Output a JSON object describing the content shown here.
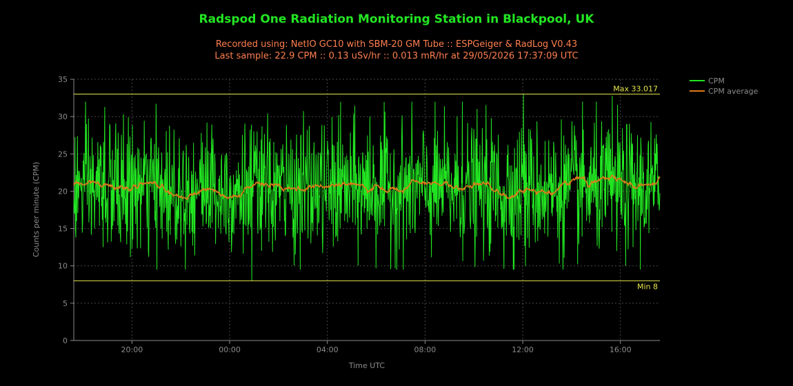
{
  "chart_data": {
    "type": "line",
    "title": "Radspod One Radiation Monitoring Station in Blackpool, UK",
    "subtitle_lines": [
      "Recorded using: NetIO GC10 with SBM-20 GM Tube :: ESPGeiger & RadLog V0.43",
      "Last sample: 22.9 CPM :: 0.13 uSv/hr :: 0.013 mR/hr at 29/05/2026 17:37:09 UTC"
    ],
    "xlabel": "Time UTC",
    "ylabel": "Counts per minute (CPM)",
    "x_range": [
      "2026-05-28 17:37",
      "2026-05-29 17:37"
    ],
    "x_ticks": [
      "20:00",
      "00:00",
      "04:00",
      "08:00",
      "12:00",
      "16:00"
    ],
    "ylim": [
      0,
      35
    ],
    "y_ticks": [
      "0",
      "5",
      "10",
      "15",
      "20",
      "25",
      "30",
      "35"
    ],
    "grid": true,
    "legend_position": "top-right",
    "series": [
      {
        "name": "CPM",
        "color": "#22e622",
        "sampling": "1-minute samples, about 1440 points over 24 h, mean ≈ 20.3 CPM, std ≈ 4.3"
      },
      {
        "name": "CPM average",
        "color": "#e07b1a",
        "sampling": "moving average, range ≈ 17.8–22.6 CPM"
      }
    ],
    "reference_lines": [
      {
        "label": "Max 33.017",
        "value": 33.017,
        "color": "#e6e64c"
      },
      {
        "label": "Min 8",
        "value": 8,
        "color": "#e6e64c"
      }
    ]
  }
}
